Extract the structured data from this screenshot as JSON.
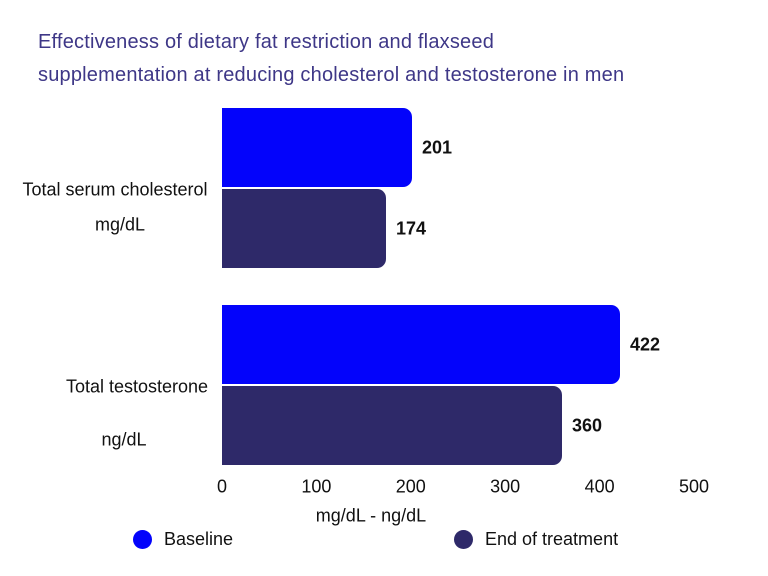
{
  "colors": {
    "baseline": "#0303fb",
    "end_of_treatment": "#2e2969",
    "title_text": "#3e3787",
    "body_text": "#111111",
    "background": "#ffffff"
  },
  "chart_data": {
    "type": "bar",
    "orientation": "horizontal",
    "title": "Effectiveness of dietary fat restriction and flaxseed supplementation at reducing cholesterol and testosterone in men",
    "title_lines": [
      "Effectiveness of dietary fat restriction and flaxseed",
      "supplementation at reducing cholesterol and testosterone in men"
    ],
    "categories": [
      "Total serum cholesterol",
      "Total testosterone"
    ],
    "category_units": [
      "mg/dL",
      "ng/dL"
    ],
    "series": [
      {
        "name": "Baseline",
        "color": "#0303fb",
        "values": [
          201,
          422
        ]
      },
      {
        "name": "End of treatment",
        "color": "#2e2969",
        "values": [
          174,
          360
        ]
      }
    ],
    "value_labels": [
      [
        201,
        422
      ],
      [
        174,
        360
      ]
    ],
    "xlabel": "mg/dL - ng/dL",
    "xlim": [
      0,
      500
    ],
    "xticks": [
      0,
      100,
      200,
      300,
      400,
      500
    ],
    "grid": false,
    "axis_line": false,
    "legend_position": "bottom",
    "legend": [
      "Baseline",
      "End of treatment"
    ]
  }
}
